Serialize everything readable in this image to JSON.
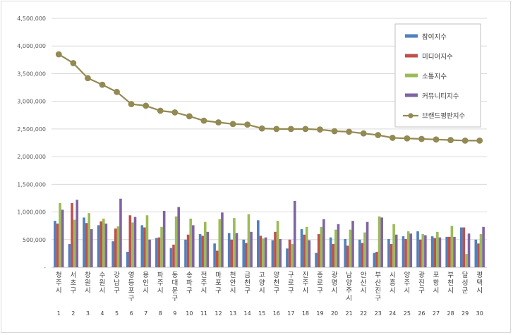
{
  "chart_data": {
    "type": "bar",
    "categories": [
      "청주시",
      "서초구",
      "창원시",
      "수원시",
      "강남구",
      "영등포구",
      "용인시",
      "파주시",
      "동대문구",
      "송파구",
      "전주시",
      "마포구",
      "천안시",
      "금천구",
      "고양시",
      "양천구",
      "구로구",
      "진주시",
      "종로구",
      "광명시",
      "남양주시",
      "안산시",
      "부산진구",
      "시흥시",
      "양주시",
      "광진구",
      "포항시",
      "부천시",
      "달성군",
      "평택시"
    ],
    "category_numbers": [
      "1",
      "2",
      "3",
      "4",
      "5",
      "6",
      "7",
      "8",
      "9",
      "10",
      "11",
      "12",
      "13",
      "14",
      "15",
      "16",
      "17",
      "18",
      "19",
      "20",
      "21",
      "22",
      "23",
      "24",
      "25",
      "26",
      "27",
      "28",
      "29",
      "30"
    ],
    "series": [
      {
        "name": "참여지수",
        "type": "bar",
        "color": "#4f81bd",
        "values": [
          840000,
          420000,
          900000,
          760000,
          470000,
          280000,
          760000,
          530000,
          350000,
          500000,
          600000,
          430000,
          620000,
          500000,
          850000,
          490000,
          340000,
          690000,
          260000,
          540000,
          510000,
          500000,
          260000,
          510000,
          560000,
          650000,
          560000,
          550000,
          720000,
          500000
        ]
      },
      {
        "name": "미디어지수",
        "type": "bar",
        "color": "#c0504d",
        "values": [
          790000,
          1160000,
          800000,
          830000,
          700000,
          940000,
          720000,
          540000,
          410000,
          590000,
          570000,
          300000,
          500000,
          440000,
          570000,
          640000,
          500000,
          590000,
          600000,
          420000,
          390000,
          440000,
          280000,
          420000,
          510000,
          500000,
          530000,
          550000,
          720000,
          430000
        ]
      },
      {
        "name": "소통지수",
        "type": "bar",
        "color": "#9bbb59",
        "values": [
          1160000,
          860000,
          980000,
          880000,
          740000,
          810000,
          940000,
          730000,
          920000,
          880000,
          820000,
          870000,
          890000,
          960000,
          520000,
          840000,
          420000,
          730000,
          730000,
          680000,
          680000,
          630000,
          920000,
          780000,
          650000,
          600000,
          640000,
          750000,
          240000,
          600000
        ]
      },
      {
        "name": "커뮤니티지수",
        "type": "bar",
        "color": "#8064a2",
        "values": [
          1040000,
          1220000,
          690000,
          790000,
          1240000,
          910000,
          500000,
          1020000,
          1090000,
          760000,
          640000,
          990000,
          620000,
          640000,
          540000,
          510000,
          1200000,
          490000,
          870000,
          780000,
          840000,
          820000,
          900000,
          590000,
          610000,
          580000,
          540000,
          550000,
          610000,
          730000
        ]
      },
      {
        "name": "브랜드평판지수",
        "type": "line",
        "color": "#938953",
        "values": [
          3850000,
          3690000,
          3420000,
          3300000,
          3170000,
          2950000,
          2920000,
          2830000,
          2800000,
          2730000,
          2650000,
          2620000,
          2590000,
          2580000,
          2510000,
          2500000,
          2500000,
          2500000,
          2490000,
          2460000,
          2450000,
          2420000,
          2390000,
          2340000,
          2330000,
          2320000,
          2310000,
          2300000,
          2290000,
          2290000
        ]
      }
    ],
    "y_ticks": [
      "4,500,000",
      "4,000,000",
      "3,500,000",
      "3,000,000",
      "2,500,000",
      "2,000,000",
      "1,500,000",
      "1,000,000",
      "500,000",
      "-"
    ],
    "ylim": [
      0,
      4500000
    ],
    "title": "",
    "xlabel": "",
    "ylabel": "",
    "grid": true,
    "legend_position": "top-right"
  }
}
